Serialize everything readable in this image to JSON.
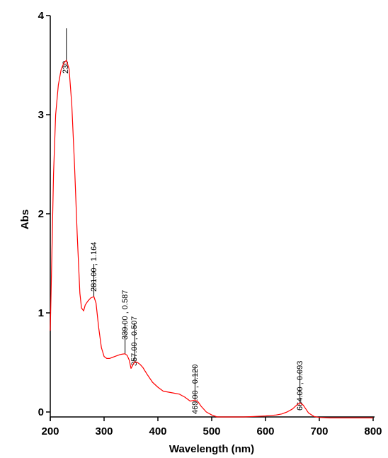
{
  "chart_data": {
    "type": "line",
    "title": "",
    "xlabel": "Wavelength (nm)",
    "ylabel": "Abs",
    "xlim": [
      200,
      800
    ],
    "ylim": [
      -0.05,
      4
    ],
    "xticks": [
      200,
      300,
      400,
      500,
      600,
      700,
      800
    ],
    "yticks": [
      0,
      1,
      2,
      3,
      4
    ],
    "grid": false,
    "line_color": "#ff0000",
    "series": [
      {
        "x": [
          200,
          203,
          206,
          210,
          215,
          220,
          225,
          230,
          235,
          240,
          245,
          250,
          255,
          258,
          262,
          265,
          270,
          275,
          281,
          285,
          290,
          295,
          300,
          305,
          310,
          315,
          320,
          325,
          330,
          335,
          339,
          343,
          347,
          350,
          353,
          357,
          362,
          367,
          372,
          380,
          390,
          400,
          410,
          420,
          430,
          440,
          450,
          460,
          469,
          475,
          480,
          490,
          500,
          510,
          520,
          540,
          560,
          580,
          600,
          620,
          630,
          640,
          650,
          658,
          664,
          670,
          675,
          680,
          690,
          700,
          720,
          750,
          780,
          800
        ],
        "y": [
          0.82,
          1.6,
          2.4,
          3.0,
          3.3,
          3.45,
          3.52,
          3.55,
          3.46,
          3.1,
          2.5,
          1.8,
          1.2,
          1.05,
          1.02,
          1.08,
          1.12,
          1.15,
          1.164,
          1.1,
          0.85,
          0.65,
          0.56,
          0.54,
          0.54,
          0.55,
          0.56,
          0.57,
          0.58,
          0.585,
          0.587,
          0.57,
          0.52,
          0.44,
          0.47,
          0.507,
          0.5,
          0.48,
          0.45,
          0.38,
          0.3,
          0.25,
          0.21,
          0.2,
          0.19,
          0.18,
          0.15,
          0.11,
          0.12,
          0.1,
          0.06,
          0.0,
          -0.03,
          -0.05,
          -0.05,
          -0.05,
          -0.05,
          -0.045,
          -0.04,
          -0.03,
          -0.02,
          0.0,
          0.03,
          0.07,
          0.093,
          0.07,
          0.03,
          -0.01,
          -0.045,
          -0.055,
          -0.06,
          -0.06,
          -0.06,
          -0.06
        ]
      }
    ],
    "annotations": [
      {
        "x": 230,
        "y": 3.55,
        "text": "230"
      },
      {
        "x": 281,
        "y": 1.164,
        "text": "281.00 , 1.164"
      },
      {
        "x": 339,
        "y": 0.587,
        "text": "339.00 , 0.587"
      },
      {
        "x": 357,
        "y": 0.507,
        "text": "357.00 , 0.507"
      },
      {
        "x": 469,
        "y": 0.12,
        "text": "469.00 , 0.120"
      },
      {
        "x": 664,
        "y": 0.093,
        "text": "664.00 , 0.093"
      }
    ]
  }
}
